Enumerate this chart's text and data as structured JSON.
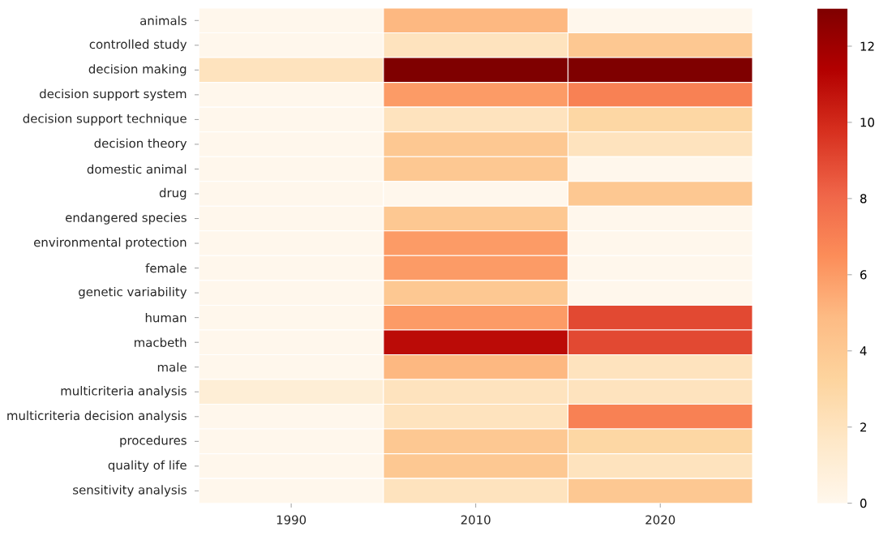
{
  "chart_data": {
    "type": "heatmap",
    "categories": [
      "1990",
      "2010",
      "2020"
    ],
    "y_categories": [
      "animals",
      "controlled study",
      "decision making",
      "decision support system",
      "decision support technique",
      "decision theory",
      "domestic animal",
      "drug",
      "endangered species",
      "environmental protection",
      "female",
      "genetic variability",
      "human",
      "macbeth",
      "male",
      "multicriteria analysis",
      "multicriteria decision analysis",
      "procedures",
      "quality of life",
      "sensitivity analysis"
    ],
    "cells": [
      [
        0,
        5,
        0
      ],
      [
        0,
        2,
        4
      ],
      [
        2,
        13,
        13
      ],
      [
        0,
        6,
        7
      ],
      [
        0,
        2,
        3
      ],
      [
        0,
        4,
        2
      ],
      [
        0,
        4,
        0
      ],
      [
        0,
        0,
        4
      ],
      [
        0,
        4,
        0
      ],
      [
        0,
        6,
        0
      ],
      [
        0,
        6,
        0
      ],
      [
        0,
        4,
        0
      ],
      [
        0,
        6,
        9
      ],
      [
        0,
        11,
        9
      ],
      [
        0,
        5,
        2
      ],
      [
        1,
        2,
        2
      ],
      [
        0,
        2,
        7
      ],
      [
        0,
        4,
        3
      ],
      [
        0,
        4,
        2
      ],
      [
        0,
        2,
        4
      ]
    ],
    "clim": [
      0,
      13
    ],
    "cticks": [
      0,
      2,
      4,
      6,
      8,
      10,
      12
    ]
  }
}
